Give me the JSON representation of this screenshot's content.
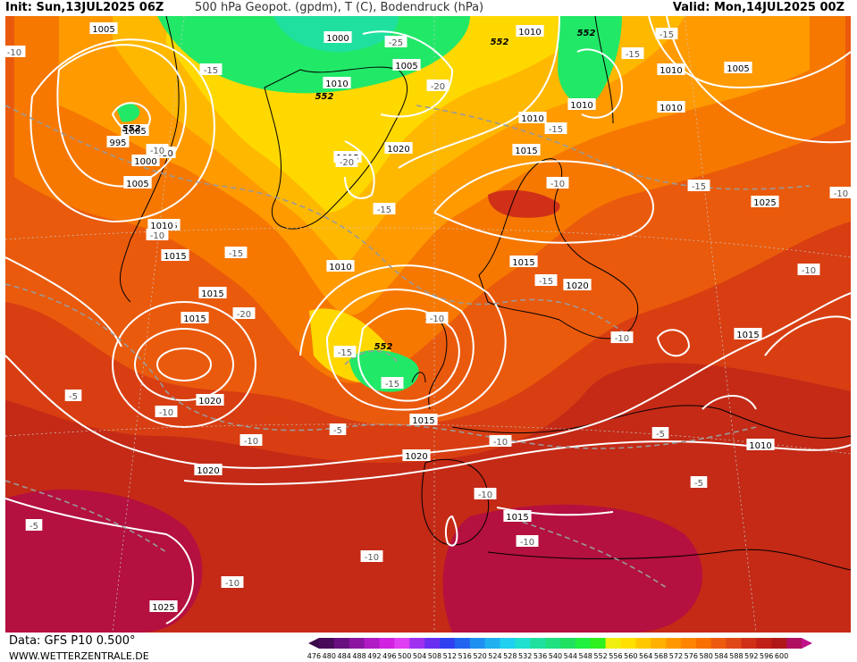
{
  "header": {
    "init": "Init: Sun,13JUL2025 06Z",
    "title": "500 hPa Geopot. (gpdm), T (C), Bodendruck (hPa)",
    "valid": "Valid: Mon,14JUL2025 00Z"
  },
  "footer": {
    "source": "Data: GFS P10 0.500°",
    "site": "WWW.WETTERZENTRALE.DE"
  },
  "legend": {
    "values": [
      "476",
      "480",
      "484",
      "488",
      "492",
      "496",
      "500",
      "504",
      "508",
      "512",
      "516",
      "520",
      "524",
      "528",
      "532",
      "536",
      "540",
      "544",
      "548",
      "552",
      "556",
      "560",
      "564",
      "568",
      "572",
      "576",
      "580",
      "584",
      "588",
      "592",
      "596",
      "600"
    ],
    "colors": [
      "#4a0a5a",
      "#6a0f7f",
      "#8b15a0",
      "#b01bc4",
      "#d022e0",
      "#e03ef2",
      "#a030f0",
      "#6a2ef0",
      "#3040f0",
      "#2064f0",
      "#2090f0",
      "#20b0f0",
      "#20d0f0",
      "#20e0d0",
      "#20e0a0",
      "#20e080",
      "#20e060",
      "#20f040",
      "#30f020",
      "#f0f010",
      "#ffe000",
      "#ffc800",
      "#ffb000",
      "#ff9800",
      "#ff8400",
      "#f87000",
      "#ee5a10",
      "#e04818",
      "#d03018",
      "#c02018",
      "#b01818",
      "#b01060"
    ]
  },
  "pressure_labels": [
    "1005",
    "1000",
    "1005",
    "1010",
    "1010",
    "1010",
    "1005",
    "1010",
    "1005",
    "1015",
    "995",
    "1000",
    "1005",
    "1010",
    "1015",
    "1015",
    "1015",
    "1020",
    "1020",
    "1025",
    "1020",
    "1015",
    "1010",
    "1015",
    "1010",
    "1005",
    "1010",
    "1010",
    "1015",
    "1020",
    "1020",
    "1015",
    "1015",
    "1025",
    "1010",
    "1015"
  ],
  "temp_labels": [
    "-10",
    "-15",
    "-25",
    "-15",
    "-15",
    "-20",
    "-10",
    "-15",
    "-10",
    "-20",
    "-15",
    "-15",
    "-10",
    "-15",
    "-15",
    "-20",
    "-10",
    "-10",
    "-10",
    "-10",
    "-10",
    "-10",
    "-5",
    "-10",
    "-5",
    "-5",
    "-5",
    "-5",
    "-10",
    "-15",
    "-15",
    "-10",
    "-10",
    "-10"
  ],
  "geopot_labels": [
    "552",
    "552",
    "552",
    "552",
    "552"
  ]
}
